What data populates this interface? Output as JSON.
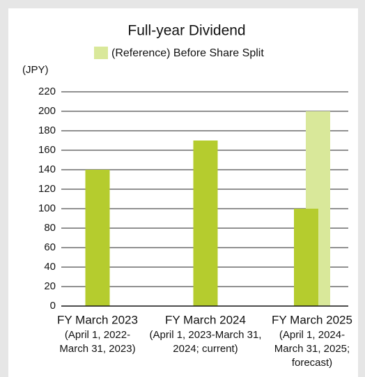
{
  "chart_data": {
    "type": "bar",
    "title": "Full-year Dividend",
    "unit_label": "(JPY)",
    "categories": [
      "FY March 2023",
      "FY March 2024",
      "FY March 2025"
    ],
    "category_notes": [
      [
        "(April 1, 2022-",
        "March 31, 2023)"
      ],
      [
        "(April 1, 2023-March 31,",
        "2024; current)"
      ],
      [
        "(April 1, 2024-",
        "March 31, 2025;",
        "forecast)"
      ]
    ],
    "series": [
      {
        "color": "#b5cc2e",
        "values": [
          140,
          170,
          100
        ]
      },
      {
        "name": "(Reference)  Before Share Split",
        "color": "#d9e89a",
        "values": [
          null,
          null,
          200
        ]
      }
    ],
    "ylim": [
      0,
      220
    ],
    "yticks": [
      0,
      20,
      40,
      60,
      80,
      100,
      120,
      140,
      160,
      180,
      200,
      220
    ],
    "grid": true
  }
}
